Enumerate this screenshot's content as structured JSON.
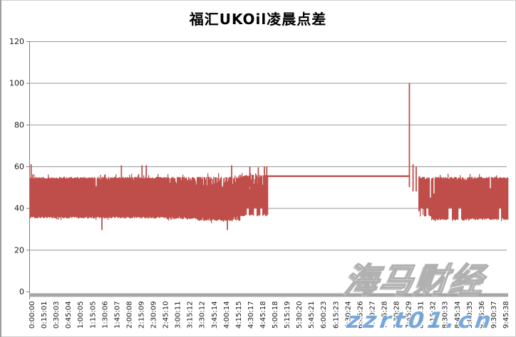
{
  "page": {
    "background": "#ffffff"
  },
  "chart_data": {
    "type": "bar",
    "title": "福汇UKOil凌晨点差",
    "xlabel": "",
    "ylabel": "",
    "ylim": [
      0,
      120
    ],
    "yticks": [
      0,
      20,
      40,
      60,
      80,
      100,
      120
    ],
    "grid": "horizontal",
    "legend": "none",
    "x_minutes_per_label": 15,
    "x_tick_labels": [
      "0:00:00",
      "0:15:01",
      "0:30:03",
      "0:45:04",
      "1:00:05",
      "1:15:05",
      "1:30:06",
      "1:45:07",
      "2:00:08",
      "2:15:09",
      "2:30:09",
      "2:45:10",
      "3:00:11",
      "3:15:12",
      "3:30:12",
      "3:45:14",
      "4:00:14",
      "4:15:15",
      "4:30:17",
      "4:45:18",
      "5:00:18",
      "5:15:19",
      "5:30:20",
      "5:45:21",
      "6:00:23",
      "6:15:23",
      "6:30:24",
      "6:45:26",
      "7:00:27",
      "7:15:28",
      "7:30:28",
      "7:45:29",
      "8:00:31",
      "8:15:32",
      "8:30:33",
      "8:45:34",
      "9:00:35",
      "9:15:36",
      "9:30:37",
      "9:45:38"
    ],
    "colors": {
      "bar": "#BF4E4A",
      "gridline": "#969696",
      "axis": "#808080",
      "axis_band": "#A6A6A6",
      "tick_text": "#1a1a1a"
    },
    "envelope": {
      "regions": [
        {
          "u0": 0.0,
          "u1": 11.3,
          "kind": "band",
          "top": 55,
          "top_var": 1.5,
          "jag_p": 0.05,
          "bottom": 35,
          "bottom_var": 1.0
        },
        {
          "u0": 11.3,
          "u1": 13.8,
          "kind": "band",
          "top": 55,
          "top_var": 4.0,
          "jag_p": 0.3,
          "bottom": 34.5,
          "bottom_var": 1.5
        },
        {
          "u0": 13.8,
          "u1": 17.3,
          "kind": "band",
          "top": 55,
          "top_var": 5.0,
          "jag_p": 0.35,
          "bottom": 33.8,
          "bottom_var": 2.0
        },
        {
          "u0": 17.3,
          "u1": 19.6,
          "kind": "band",
          "top": 56,
          "top_var": 7.0,
          "jag_p": 0.5,
          "bottom": 36,
          "bottom_var": 3.0
        },
        {
          "u0": 19.6,
          "u1": 31.32,
          "kind": "line",
          "top": 55.7,
          "bottom": 54.9
        },
        {
          "u0": 32.05,
          "u1": 33.1,
          "kind": "band",
          "top": 55,
          "top_var": 3.0,
          "jag_p": 0.3,
          "bottom": 36,
          "bottom_var": 4.0
        },
        {
          "u0": 33.1,
          "u1": 36.2,
          "kind": "band",
          "top": 55,
          "top_var": 2.0,
          "jag_p": 0.2,
          "bottom": 34,
          "bottom_var": 1.2
        },
        {
          "u0": 36.2,
          "u1": 39.42,
          "kind": "band",
          "top": 55,
          "top_var": 1.8,
          "jag_p": 0.15,
          "bottom": 34.3,
          "bottom_var": 1.0
        }
      ],
      "spikes": [
        {
          "u": 0.1,
          "hi": 61,
          "lo": 50
        },
        {
          "u": 5.94,
          "hi": 36,
          "lo": 29.5
        },
        {
          "u": 7.55,
          "hi": 60.5,
          "lo": 53
        },
        {
          "u": 9.25,
          "hi": 60.5,
          "lo": 53
        },
        {
          "u": 9.6,
          "hi": 60.5,
          "lo": 53
        },
        {
          "u": 16.3,
          "hi": 36,
          "lo": 29.5
        },
        {
          "u": 16.65,
          "hi": 60.5,
          "lo": 53
        },
        {
          "u": 18.15,
          "hi": 60,
          "lo": 50
        },
        {
          "u": 18.85,
          "hi": 59.5,
          "lo": 50
        },
        {
          "u": 19.35,
          "hi": 60,
          "lo": 47
        },
        {
          "u": 19.55,
          "hi": 60,
          "lo": 45
        },
        {
          "u": 31.32,
          "hi": 100,
          "lo": 50
        },
        {
          "u": 31.62,
          "hi": 61,
          "lo": 48
        },
        {
          "u": 31.88,
          "hi": 60,
          "lo": 48
        }
      ],
      "white_notches": [
        {
          "u": 5.47,
          "hi": 55.8,
          "lo": 50.5
        },
        {
          "u": 33.05,
          "hi": 55.8,
          "lo": 45
        },
        {
          "u": 33.35,
          "hi": 55.8,
          "lo": 47
        },
        {
          "u": 38.0,
          "hi": 55.8,
          "lo": 49.5
        }
      ],
      "bottom_gaps": [
        {
          "u0": 17.85,
          "u1": 18.05,
          "lift_to": 40
        },
        {
          "u0": 18.45,
          "u1": 18.65,
          "lift_to": 40
        },
        {
          "u0": 18.95,
          "u1": 19.15,
          "lift_to": 40
        },
        {
          "u0": 32.2,
          "u1": 32.4,
          "lift_to": 40
        },
        {
          "u0": 32.65,
          "u1": 32.85,
          "lift_to": 40
        },
        {
          "u0": 34.5,
          "u1": 34.8,
          "lift_to": 40
        },
        {
          "u0": 35.3,
          "u1": 35.55,
          "lift_to": 40
        },
        {
          "u0": 38.7,
          "u1": 38.85,
          "lift_to": 40
        }
      ]
    }
  },
  "watermark": {
    "brand_text": "海马财经",
    "url_text": "zzrt01.cn",
    "url_color": "#6FA3D8"
  }
}
